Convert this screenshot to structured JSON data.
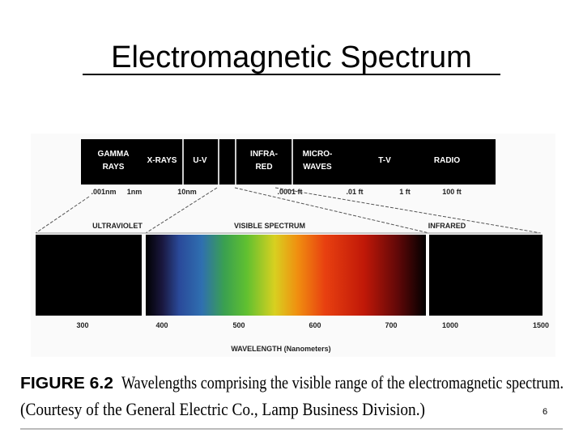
{
  "title": "Electromagnetic Spectrum",
  "figure": {
    "band": [
      [
        "GAMMA",
        "RAYS"
      ],
      [
        "X-RAYS"
      ],
      [
        "U-V"
      ],
      [
        "INFRA-",
        "RED"
      ],
      [
        "MICRO-",
        "WAVES"
      ],
      [
        "T-V"
      ],
      [
        "RADIO"
      ]
    ],
    "scale": [
      ".001nm",
      "1nm",
      "10nm",
      ".0001 ft",
      ".01 ft",
      "1 ft",
      "100 ft"
    ],
    "regions": [
      "ULTRAVIOLET",
      "VISIBLE SPECTRUM",
      "INFRARED"
    ],
    "wavelengths": [
      "300",
      "400",
      "500",
      "600",
      "700",
      "1000",
      "1500"
    ],
    "axis_label": "WAVELENGTH (Nanometers)"
  },
  "caption": {
    "figure_number": "FIGURE 6.2",
    "line1": "Wavelengths comprising the visible range of the electromagnetic spectrum.",
    "line2": "(Courtesy of the General Electric Co., Lamp Business Division.)"
  },
  "page_number": "6"
}
